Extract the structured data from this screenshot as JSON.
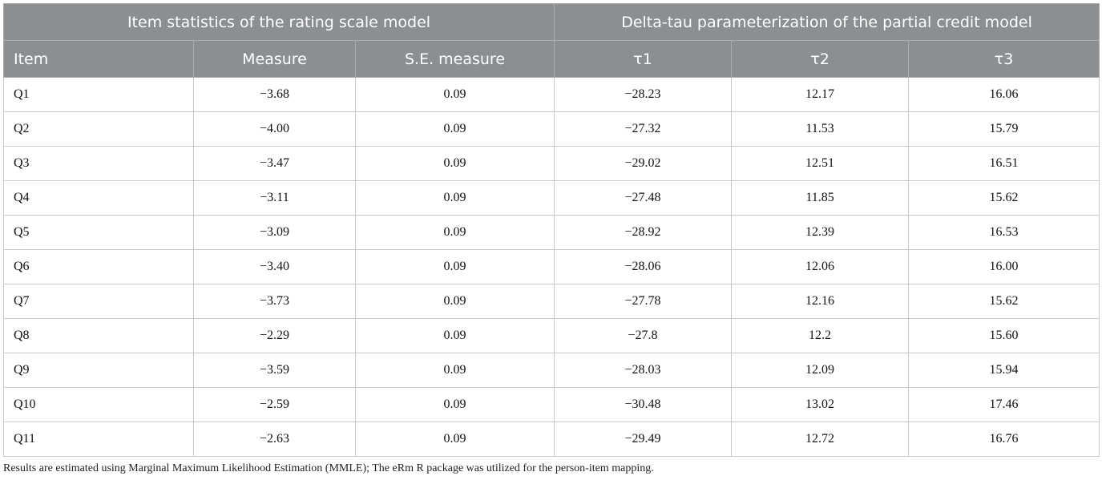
{
  "header": {
    "group1": "Item statistics of the rating scale model",
    "group2": "Delta-tau parameterization of the partial credit model",
    "columns": [
      "Item",
      "Measure",
      "S.E. measure",
      "τ1",
      "τ2",
      "τ3"
    ]
  },
  "rows": [
    [
      "Q1",
      "−3.68",
      "0.09",
      "−28.23",
      "12.17",
      "16.06"
    ],
    [
      "Q2",
      "−4.00",
      "0.09",
      "−27.32",
      "11.53",
      "15.79"
    ],
    [
      "Q3",
      "−3.47",
      "0.09",
      "−29.02",
      "12.51",
      "16.51"
    ],
    [
      "Q4",
      "−3.11",
      "0.09",
      "−27.48",
      "11.85",
      "15.62"
    ],
    [
      "Q5",
      "−3.09",
      "0.09",
      "−28.92",
      "12.39",
      "16.53"
    ],
    [
      "Q6",
      "−3.40",
      "0.09",
      "−28.06",
      "12.06",
      "16.00"
    ],
    [
      "Q7",
      "−3.73",
      "0.09",
      "−27.78",
      "12.16",
      "15.62"
    ],
    [
      "Q8",
      "−2.29",
      "0.09",
      "−27.8",
      "12.2",
      "15.60"
    ],
    [
      "Q9",
      "−3.59",
      "0.09",
      "−28.03",
      "12.09",
      "15.94"
    ],
    [
      "Q10",
      "−2.59",
      "0.09",
      "−30.48",
      "13.02",
      "17.46"
    ],
    [
      "Q11",
      "−2.63",
      "0.09",
      "−29.49",
      "12.72",
      "16.76"
    ]
  ],
  "footnote": "Results are estimated using Marginal Maximum Likelihood Estimation (MMLE); The eRm R package was utilized for the person-item mapping."
}
